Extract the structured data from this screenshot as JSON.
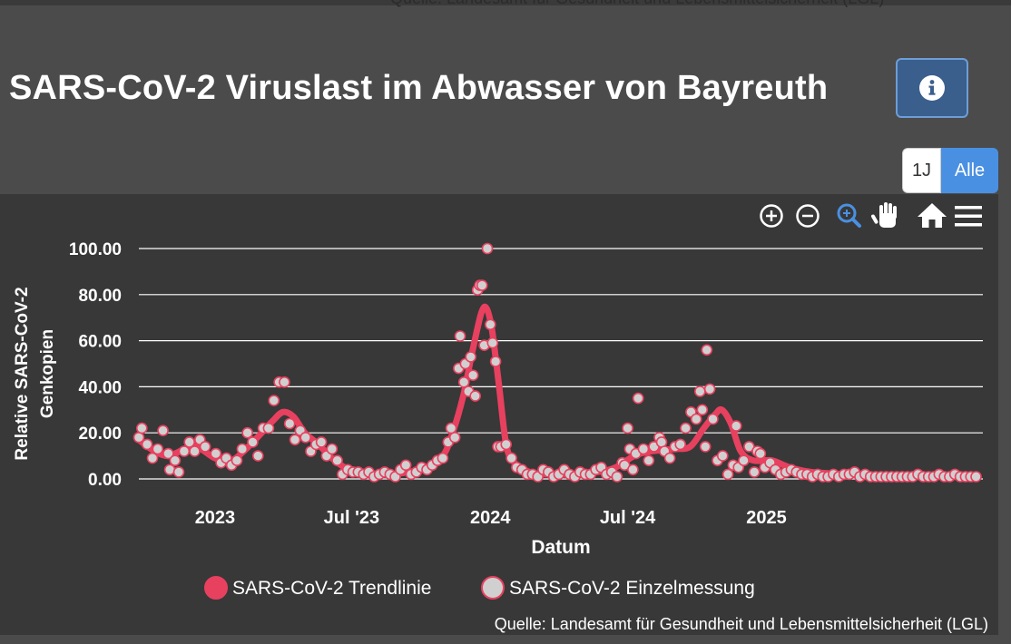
{
  "page": {
    "title": "SARS-CoV-2 Viruslast im Abwasser von Bayreuth",
    "top_source": "Quelle: Landesamt für Gesundheit und Lebensmittelsicherheit (LGL)",
    "info_icon": "info-circle-icon"
  },
  "range_selector": {
    "one_year": "1J",
    "all": "Alle",
    "active": "Alle"
  },
  "toolbar": {
    "icons": [
      "zoom-in-icon",
      "zoom-out-icon",
      "zoom-select-icon",
      "pan-hand-icon",
      "reset-home-icon",
      "menu-icon"
    ]
  },
  "colors": {
    "background": "#4b4b4b",
    "plot_background": "#383838",
    "trend": "#e8405f",
    "marker_fill": "#d0d0d0",
    "marker_stroke": "#e8405f",
    "accent": "#4a90e2"
  },
  "chart_data": {
    "type": "line",
    "xlabel": "Datum",
    "ylabel": "Relative SARS-CoV-2 Genkopien",
    "y_ticks": [
      "0.00",
      "20.00",
      "40.00",
      "60.00",
      "80.00",
      "100.00"
    ],
    "ylim": [
      0,
      100
    ],
    "x_ticks": [
      {
        "date": "2023-01-01",
        "label": "2023"
      },
      {
        "date": "2023-07-01",
        "label": "Jul '23"
      },
      {
        "date": "2024-01-01",
        "label": "2024"
      },
      {
        "date": "2024-07-01",
        "label": "Jul '24"
      },
      {
        "date": "2025-01-01",
        "label": "2025"
      }
    ],
    "xlim": [
      "2022-09-22",
      "2025-10-15"
    ],
    "grid": "horizontal",
    "legend": {
      "position": "bottom-center"
    },
    "source": "Quelle: Landesamt für Gesundheit und Lebensmittelsicherheit (LGL)",
    "series": [
      {
        "name": "SARS-CoV-2 Trendlinie",
        "style": "line",
        "points": [
          [
            "2022-09-22",
            17
          ],
          [
            "2022-10-08",
            13
          ],
          [
            "2022-10-30",
            10
          ],
          [
            "2022-11-22",
            13
          ],
          [
            "2022-12-08",
            14
          ],
          [
            "2023-01-01",
            9
          ],
          [
            "2023-01-22",
            8
          ],
          [
            "2023-02-08",
            12
          ],
          [
            "2023-03-01",
            19
          ],
          [
            "2023-03-18",
            25
          ],
          [
            "2023-04-01",
            29
          ],
          [
            "2023-04-15",
            27
          ],
          [
            "2023-04-30",
            20
          ],
          [
            "2023-05-18",
            15
          ],
          [
            "2023-06-05",
            9
          ],
          [
            "2023-06-22",
            5
          ],
          [
            "2023-07-08",
            3
          ],
          [
            "2023-08-01",
            2
          ],
          [
            "2023-08-22",
            2
          ],
          [
            "2023-09-15",
            3
          ],
          [
            "2023-10-08",
            5
          ],
          [
            "2023-10-30",
            10
          ],
          [
            "2023-11-12",
            20
          ],
          [
            "2023-11-26",
            36
          ],
          [
            "2023-12-08",
            55
          ],
          [
            "2023-12-20",
            72
          ],
          [
            "2023-12-27",
            74
          ],
          [
            "2024-01-03",
            65
          ],
          [
            "2024-01-12",
            42
          ],
          [
            "2024-01-22",
            15
          ],
          [
            "2024-02-02",
            7
          ],
          [
            "2024-02-22",
            3
          ],
          [
            "2024-03-15",
            2
          ],
          [
            "2024-04-15",
            2
          ],
          [
            "2024-05-22",
            3
          ],
          [
            "2024-06-15",
            5
          ],
          [
            "2024-07-10",
            10
          ],
          [
            "2024-08-01",
            12
          ],
          [
            "2024-09-01",
            13
          ],
          [
            "2024-09-22",
            14
          ],
          [
            "2024-10-10",
            22
          ],
          [
            "2024-10-25",
            28
          ],
          [
            "2024-11-03",
            30
          ],
          [
            "2024-11-15",
            24
          ],
          [
            "2024-11-28",
            12
          ],
          [
            "2024-12-15",
            8
          ],
          [
            "2025-01-08",
            8
          ],
          [
            "2025-02-01",
            5
          ],
          [
            "2025-03-01",
            3
          ],
          [
            "2025-04-15",
            2
          ],
          [
            "2025-06-15",
            1
          ],
          [
            "2025-08-15",
            1
          ],
          [
            "2025-10-05",
            1
          ]
        ]
      },
      {
        "name": "SARS-CoV-2 Einzelmessung",
        "style": "scatter",
        "points": [
          [
            "2022-09-22",
            18
          ],
          [
            "2022-09-26",
            22
          ],
          [
            "2022-10-03",
            15
          ],
          [
            "2022-10-10",
            9
          ],
          [
            "2022-10-17",
            13
          ],
          [
            "2022-10-24",
            21
          ],
          [
            "2022-10-31",
            11
          ],
          [
            "2022-11-02",
            4
          ],
          [
            "2022-11-09",
            8
          ],
          [
            "2022-11-14",
            3
          ],
          [
            "2022-11-21",
            12
          ],
          [
            "2022-11-28",
            16
          ],
          [
            "2022-12-05",
            12
          ],
          [
            "2022-12-12",
            17
          ],
          [
            "2022-12-19",
            14
          ],
          [
            "2023-01-02",
            11
          ],
          [
            "2023-01-09",
            7
          ],
          [
            "2023-01-16",
            9
          ],
          [
            "2023-01-23",
            6
          ],
          [
            "2023-01-30",
            8
          ],
          [
            "2023-02-06",
            13
          ],
          [
            "2023-02-13",
            20
          ],
          [
            "2023-02-20",
            16
          ],
          [
            "2023-02-27",
            10
          ],
          [
            "2023-03-06",
            22
          ],
          [
            "2023-03-13",
            22
          ],
          [
            "2023-03-20",
            34
          ],
          [
            "2023-03-27",
            42
          ],
          [
            "2023-04-03",
            42
          ],
          [
            "2023-04-10",
            24
          ],
          [
            "2023-04-17",
            17
          ],
          [
            "2023-04-24",
            21
          ],
          [
            "2023-05-01",
            18
          ],
          [
            "2023-05-08",
            12
          ],
          [
            "2023-05-15",
            15
          ],
          [
            "2023-05-22",
            16
          ],
          [
            "2023-05-29",
            10
          ],
          [
            "2023-06-05",
            13
          ],
          [
            "2023-06-12",
            8
          ],
          [
            "2023-06-19",
            2
          ],
          [
            "2023-06-26",
            4
          ],
          [
            "2023-07-03",
            3
          ],
          [
            "2023-07-10",
            3
          ],
          [
            "2023-07-17",
            2
          ],
          [
            "2023-07-24",
            3
          ],
          [
            "2023-07-31",
            1
          ],
          [
            "2023-08-07",
            2
          ],
          [
            "2023-08-14",
            3
          ],
          [
            "2023-08-21",
            2
          ],
          [
            "2023-08-28",
            1
          ],
          [
            "2023-09-04",
            4
          ],
          [
            "2023-09-11",
            6
          ],
          [
            "2023-09-18",
            2
          ],
          [
            "2023-09-25",
            3
          ],
          [
            "2023-10-02",
            5
          ],
          [
            "2023-10-09",
            4
          ],
          [
            "2023-10-16",
            6
          ],
          [
            "2023-10-23",
            8
          ],
          [
            "2023-10-30",
            9
          ],
          [
            "2023-11-06",
            16
          ],
          [
            "2023-11-10",
            22
          ],
          [
            "2023-11-15",
            18
          ],
          [
            "2023-11-20",
            48
          ],
          [
            "2023-11-22",
            62
          ],
          [
            "2023-11-27",
            42
          ],
          [
            "2023-11-29",
            50
          ],
          [
            "2023-12-03",
            38
          ],
          [
            "2023-12-06",
            53
          ],
          [
            "2023-12-09",
            45
          ],
          [
            "2023-12-12",
            36
          ],
          [
            "2023-12-15",
            82
          ],
          [
            "2023-12-18",
            84
          ],
          [
            "2023-12-21",
            84
          ],
          [
            "2023-12-24",
            58
          ],
          [
            "2023-12-28",
            100
          ],
          [
            "2024-01-01",
            67
          ],
          [
            "2024-01-04",
            59
          ],
          [
            "2024-01-08",
            51
          ],
          [
            "2024-01-11",
            14
          ],
          [
            "2024-01-15",
            14
          ],
          [
            "2024-01-22",
            15
          ],
          [
            "2024-01-29",
            9
          ],
          [
            "2024-02-05",
            5
          ],
          [
            "2024-02-12",
            4
          ],
          [
            "2024-02-19",
            2
          ],
          [
            "2024-02-26",
            2
          ],
          [
            "2024-03-04",
            1
          ],
          [
            "2024-03-11",
            4
          ],
          [
            "2024-03-18",
            3
          ],
          [
            "2024-03-25",
            1
          ],
          [
            "2024-04-01",
            2
          ],
          [
            "2024-04-08",
            4
          ],
          [
            "2024-04-15",
            2
          ],
          [
            "2024-04-22",
            1
          ],
          [
            "2024-04-29",
            3
          ],
          [
            "2024-05-06",
            2
          ],
          [
            "2024-05-13",
            2
          ],
          [
            "2024-05-20",
            4
          ],
          [
            "2024-05-27",
            5
          ],
          [
            "2024-06-03",
            2
          ],
          [
            "2024-06-10",
            3
          ],
          [
            "2024-06-17",
            1
          ],
          [
            "2024-06-24",
            7
          ],
          [
            "2024-06-27",
            6
          ],
          [
            "2024-07-01",
            22
          ],
          [
            "2024-07-04",
            13
          ],
          [
            "2024-07-08",
            4
          ],
          [
            "2024-07-12",
            11
          ],
          [
            "2024-07-15",
            35
          ],
          [
            "2024-07-22",
            13
          ],
          [
            "2024-07-29",
            8
          ],
          [
            "2024-08-05",
            14
          ],
          [
            "2024-08-12",
            18
          ],
          [
            "2024-08-15",
            16
          ],
          [
            "2024-08-19",
            12
          ],
          [
            "2024-08-26",
            9
          ],
          [
            "2024-09-02",
            14
          ],
          [
            "2024-09-09",
            15
          ],
          [
            "2024-09-16",
            22
          ],
          [
            "2024-09-23",
            29
          ],
          [
            "2024-09-30",
            26
          ],
          [
            "2024-10-05",
            38
          ],
          [
            "2024-10-08",
            30
          ],
          [
            "2024-10-12",
            14
          ],
          [
            "2024-10-14",
            56
          ],
          [
            "2024-10-18",
            39
          ],
          [
            "2024-10-22",
            26
          ],
          [
            "2024-10-28",
            8
          ],
          [
            "2024-11-04",
            10
          ],
          [
            "2024-11-11",
            2
          ],
          [
            "2024-11-18",
            6
          ],
          [
            "2024-11-22",
            23
          ],
          [
            "2024-11-25",
            5
          ],
          [
            "2024-12-02",
            8
          ],
          [
            "2024-12-09",
            14
          ],
          [
            "2024-12-16",
            3
          ],
          [
            "2024-12-20",
            12
          ],
          [
            "2024-12-24",
            11
          ],
          [
            "2024-12-30",
            5
          ],
          [
            "2025-01-06",
            7
          ],
          [
            "2025-01-13",
            4
          ],
          [
            "2025-01-20",
            2
          ],
          [
            "2025-01-27",
            3
          ],
          [
            "2025-02-03",
            4
          ],
          [
            "2025-02-10",
            3
          ],
          [
            "2025-02-17",
            2
          ],
          [
            "2025-02-24",
            2
          ],
          [
            "2025-03-03",
            1
          ],
          [
            "2025-03-10",
            2
          ],
          [
            "2025-03-17",
            1
          ],
          [
            "2025-03-24",
            1
          ],
          [
            "2025-03-31",
            2
          ],
          [
            "2025-04-07",
            1
          ],
          [
            "2025-04-14",
            2
          ],
          [
            "2025-04-21",
            2
          ],
          [
            "2025-04-28",
            3
          ],
          [
            "2025-05-05",
            1
          ],
          [
            "2025-05-12",
            2
          ],
          [
            "2025-05-19",
            1
          ],
          [
            "2025-05-26",
            1
          ],
          [
            "2025-06-02",
            1
          ],
          [
            "2025-06-09",
            1
          ],
          [
            "2025-06-16",
            1
          ],
          [
            "2025-06-23",
            1
          ],
          [
            "2025-06-30",
            1
          ],
          [
            "2025-07-07",
            1
          ],
          [
            "2025-07-14",
            1
          ],
          [
            "2025-07-21",
            2
          ],
          [
            "2025-07-28",
            1
          ],
          [
            "2025-08-04",
            1
          ],
          [
            "2025-08-11",
            1
          ],
          [
            "2025-08-18",
            2
          ],
          [
            "2025-08-25",
            1
          ],
          [
            "2025-09-01",
            1
          ],
          [
            "2025-09-08",
            2
          ],
          [
            "2025-09-15",
            1
          ],
          [
            "2025-09-22",
            1
          ],
          [
            "2025-09-29",
            1
          ],
          [
            "2025-10-06",
            1
          ]
        ]
      }
    ]
  }
}
